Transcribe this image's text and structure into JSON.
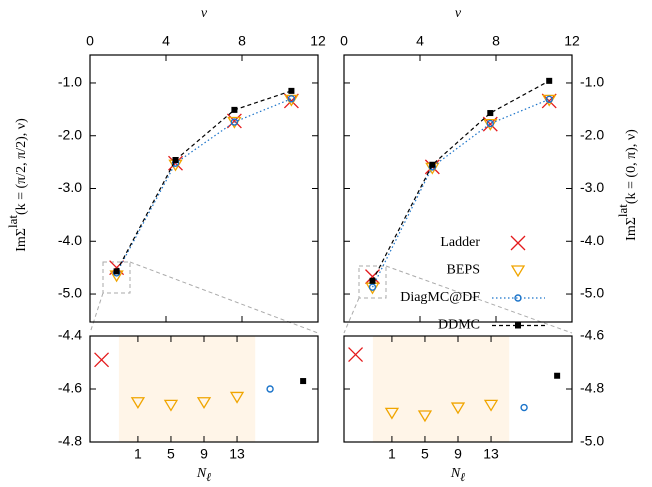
{
  "chart_data": [
    {
      "type": "line",
      "xlabel": "ν",
      "ylabel": [
        "ImΣ",
        "lat",
        "(k = (π/2, π/2), ν)"
      ],
      "x": [
        1.4,
        4.5,
        7.6,
        10.6
      ],
      "xlim": [
        0,
        12
      ],
      "xticks": [
        0,
        4,
        8,
        12
      ],
      "xaxis": "top",
      "ylim": [
        -5.53,
        -0.47
      ],
      "yticks": [
        {
          "value": -1,
          "label": "-1.0"
        },
        {
          "value": -2,
          "label": "-2.0"
        },
        {
          "value": -3,
          "label": "-3.0"
        },
        {
          "value": -4,
          "label": "-4.0"
        },
        {
          "value": -5,
          "label": "-5.0"
        }
      ],
      "yaxis": "left",
      "series": [
        {
          "name": "Ladder",
          "color": "#e41a1c",
          "marker": "cross",
          "values": [
            -4.5,
            -2.52,
            -1.72,
            -1.34
          ]
        },
        {
          "name": "BEPS",
          "color": "#f0a500",
          "marker": "triangle-down",
          "values": [
            -4.65,
            -2.55,
            -1.74,
            -1.32
          ]
        },
        {
          "name": "DiagMC@DF",
          "color": "#1a73c9",
          "marker": "circle",
          "line": "dotted",
          "values": [
            -4.6,
            -2.52,
            -1.74,
            -1.3
          ]
        },
        {
          "name": "DDMC",
          "color": "#000000",
          "marker": "square",
          "line": "dashed",
          "values": [
            -4.57,
            -2.46,
            -1.51,
            -1.15
          ]
        }
      ]
    },
    {
      "type": "line",
      "xlabel": "ν",
      "ylabel": [
        "ImΣ",
        "lat",
        "(k = (0, π), ν)"
      ],
      "x": [
        1.5,
        4.65,
        7.7,
        10.8
      ],
      "xlim": [
        0,
        12
      ],
      "xticks": [
        0,
        4,
        8,
        12
      ],
      "xaxis": "top",
      "ylim": [
        -5.53,
        -0.47
      ],
      "yticks": [
        {
          "value": -1,
          "label": "-1.0"
        },
        {
          "value": -2,
          "label": "-2.0"
        },
        {
          "value": -3,
          "label": "-3.0"
        },
        {
          "value": -4,
          "label": "-4.0"
        },
        {
          "value": -5,
          "label": "-5.0"
        }
      ],
      "yaxis": "right",
      "legend": "lower right",
      "series": [
        {
          "name": "Ladder",
          "color": "#e41a1c",
          "marker": "cross",
          "values": [
            -4.67,
            -2.59,
            -1.78,
            -1.34
          ]
        },
        {
          "name": "BEPS",
          "color": "#f0a500",
          "marker": "triangle-down",
          "values": [
            -4.88,
            -2.61,
            -1.78,
            -1.32
          ]
        },
        {
          "name": "DiagMC@DF",
          "color": "#1a73c9",
          "marker": "circle",
          "line": "dotted",
          "values": [
            -4.87,
            -2.59,
            -1.77,
            -1.31
          ]
        },
        {
          "name": "DDMC",
          "color": "#000000",
          "marker": "square",
          "line": "dashed",
          "values": [
            -4.75,
            -2.55,
            -1.57,
            -0.96
          ]
        }
      ]
    },
    {
      "type": "scatter",
      "xlabel": [
        "N",
        "ℓ"
      ],
      "xlim": [
        -4.8,
        22.8
      ],
      "xticks": [
        1,
        5,
        9,
        13
      ],
      "xaxis": "bottom",
      "ylim": [
        -4.8,
        -4.4
      ],
      "yticks": [
        -4.4,
        -4.6,
        -4.8
      ],
      "yaxis": "left",
      "highlight_xrange": [
        -1.3,
        15.2
      ],
      "highlight_color": "#fff5e8",
      "series": [
        {
          "name": "Ladder",
          "color": "#e41a1c",
          "marker": "cross",
          "x": [
            -3.4
          ],
          "values": [
            -4.49
          ]
        },
        {
          "name": "BEPS",
          "color": "#f0a500",
          "marker": "triangle-down",
          "x": [
            1,
            5,
            9,
            13
          ],
          "values": [
            -4.65,
            -4.66,
            -4.65,
            -4.63
          ]
        },
        {
          "name": "DiagMC@DF",
          "color": "#1a73c9",
          "marker": "circle",
          "x": [
            17
          ],
          "values": [
            -4.6
          ]
        },
        {
          "name": "DDMC",
          "color": "#000000",
          "marker": "square",
          "x": [
            21
          ],
          "values": [
            -4.57
          ]
        }
      ]
    },
    {
      "type": "scatter",
      "xlabel": [
        "N",
        "ℓ"
      ],
      "xlim": [
        -4.8,
        22.8
      ],
      "xticks": [
        1,
        5,
        9,
        13
      ],
      "xaxis": "bottom",
      "ylim": [
        -5,
        -4.6
      ],
      "yticks": [
        -4.6,
        -4.8,
        {
          "value": -5,
          "label": "-5.0"
        }
      ],
      "yaxis": "right",
      "highlight_xrange": [
        -1.3,
        15.2
      ],
      "highlight_color": "#fff5e8",
      "series": [
        {
          "name": "Ladder",
          "color": "#e41a1c",
          "marker": "cross",
          "x": [
            -3.4
          ],
          "values": [
            -4.67
          ]
        },
        {
          "name": "BEPS",
          "color": "#f0a500",
          "marker": "triangle-down",
          "x": [
            1,
            5,
            9,
            13
          ],
          "values": [
            -4.89,
            -4.9,
            -4.87,
            -4.86
          ]
        },
        {
          "name": "DiagMC@DF",
          "color": "#1a73c9",
          "marker": "circle",
          "x": [
            17
          ],
          "values": [
            -4.87
          ]
        },
        {
          "name": "DDMC",
          "color": "#000000",
          "marker": "square",
          "x": [
            21
          ],
          "values": [
            -4.75
          ]
        }
      ]
    }
  ]
}
